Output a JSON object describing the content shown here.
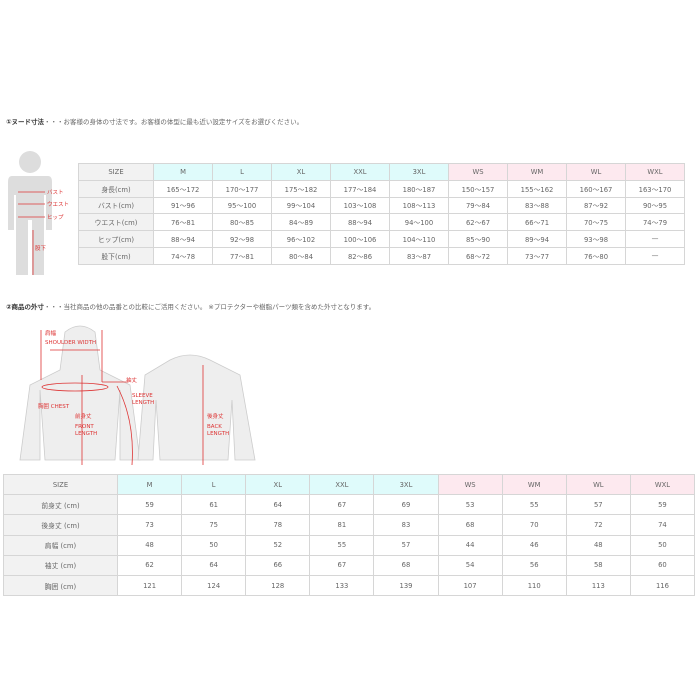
{
  "section1": {
    "title": "①ヌード寸法",
    "text": "・・・お客様の身体の寸法です。お客様の体型に最も近い設定サイズをお選びください。"
  },
  "figure1": {
    "labels": [
      "バスト",
      "ウエスト",
      "ヒップ",
      "股下"
    ]
  },
  "table1": {
    "headers": [
      "SIZE",
      "M",
      "L",
      "XL",
      "XXL",
      "3XL",
      "WS",
      "WM",
      "WL",
      "WXL"
    ],
    "rows": [
      [
        "身長(cm)",
        "165～172",
        "170～177",
        "175～182",
        "177～184",
        "180～187",
        "150～157",
        "155～162",
        "160～167",
        "163～170"
      ],
      [
        "バスト(cm)",
        "91～96",
        "95～100",
        "99～104",
        "103～108",
        "108～113",
        "79～84",
        "83～88",
        "87～92",
        "90～95"
      ],
      [
        "ウエスト(cm)",
        "76～81",
        "80～85",
        "84～89",
        "88～94",
        "94～100",
        "62～67",
        "66～71",
        "70～75",
        "74～79"
      ],
      [
        "ヒップ(cm)",
        "88～94",
        "92～98",
        "96～102",
        "100～106",
        "104～110",
        "85～90",
        "89～94",
        "93～98",
        "—"
      ],
      [
        "股下(cm)",
        "74～78",
        "77～81",
        "80～84",
        "82～86",
        "83～87",
        "68～72",
        "73～77",
        "76～80",
        "—"
      ]
    ]
  },
  "section2": {
    "title": "②商品の外寸",
    "text": "・・・当社商品の他の品番との比較にご活用ください。 ※プロテクターや樹脂パーツ類を含めた外寸となります。"
  },
  "figure2": {
    "labels": {
      "shoulder_jp": "肩幅",
      "shoulder_en": "SHOULDER WIDTH",
      "chest": "胸囲 CHEST",
      "front_jp": "前身丈",
      "front_en1": "FRONT",
      "front_en2": "LENGTH",
      "sleeve_jp": "袖丈",
      "sleeve_en1": "SLEEVE",
      "sleeve_en2": "LENGTH",
      "back_jp": "後身丈",
      "back_en1": "BACK",
      "back_en2": "LENGTH"
    }
  },
  "table2": {
    "headers": [
      "SIZE",
      "M",
      "L",
      "XL",
      "XXL",
      "3XL",
      "WS",
      "WM",
      "WL",
      "WXL"
    ],
    "rows": [
      [
        "前身丈 (cm)",
        "59",
        "61",
        "64",
        "67",
        "69",
        "53",
        "55",
        "57",
        "59"
      ],
      [
        "後身丈 (cm)",
        "73",
        "75",
        "78",
        "81",
        "83",
        "68",
        "70",
        "72",
        "74"
      ],
      [
        "肩幅 (cm)",
        "48",
        "50",
        "52",
        "55",
        "57",
        "44",
        "46",
        "48",
        "50"
      ],
      [
        "袖丈 (cm)",
        "62",
        "64",
        "66",
        "67",
        "68",
        "54",
        "56",
        "58",
        "60"
      ],
      [
        "胸囲 (cm)",
        "121",
        "124",
        "128",
        "133",
        "139",
        "107",
        "110",
        "113",
        "116"
      ]
    ]
  },
  "colors": {
    "mens_header": "#dffbfb",
    "womens_header": "#fde9ef",
    "label_red": "#dd3333"
  }
}
